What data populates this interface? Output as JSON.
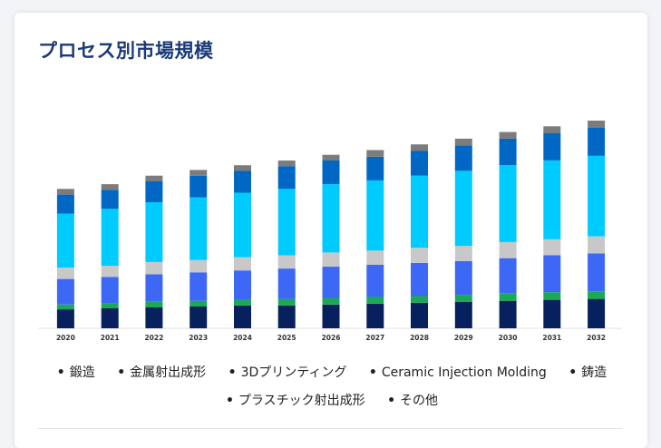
{
  "card": {
    "title": "プロセス別市場規模"
  },
  "chart_data": {
    "type": "bar",
    "stacked": true,
    "categories": [
      "2020",
      "2021",
      "2022",
      "2023",
      "2024",
      "2025",
      "2026",
      "2027",
      "2028",
      "2029",
      "2030",
      "2031",
      "2032"
    ],
    "series": [
      {
        "name": "鍛造",
        "color": "#06215e",
        "values": [
          20,
          21,
          22,
          23,
          24,
          24,
          25,
          26,
          27,
          28,
          29,
          30,
          31
        ]
      },
      {
        "name": "金属射出成形",
        "color": "#1aaa55",
        "values": [
          5,
          5,
          6,
          6,
          6,
          7,
          7,
          7,
          7,
          7,
          8,
          8,
          8
        ]
      },
      {
        "name": "3Dプリンティング",
        "color": "#3d68f5",
        "values": [
          27,
          28,
          29,
          30,
          31,
          32,
          33,
          34,
          35,
          36,
          37,
          39,
          40
        ]
      },
      {
        "name": "Ceramic Injection Molding",
        "color": "#c8c8c8",
        "values": [
          12,
          12,
          13,
          13,
          14,
          14,
          15,
          15,
          16,
          16,
          17,
          17,
          18
        ]
      },
      {
        "name": "鋳造",
        "color": "#00cbff",
        "values": [
          57,
          60,
          63,
          66,
          68,
          70,
          72,
          74,
          76,
          79,
          81,
          83,
          85
        ]
      },
      {
        "name": "プラスチック射出成形",
        "color": "#0068c4",
        "values": [
          20,
          20,
          22,
          23,
          23,
          24,
          25,
          25,
          26,
          27,
          28,
          29,
          30
        ]
      },
      {
        "name": "その他",
        "color": "#7c7c7c",
        "values": [
          6,
          6,
          6,
          6,
          6,
          6,
          6,
          7,
          7,
          7,
          7,
          7,
          7
        ]
      }
    ],
    "ylim": [
      0,
      220
    ],
    "grid": false,
    "legend_position": "bottom"
  },
  "legend": {
    "bullet": "•",
    "items": [
      "鍛造",
      "金属射出成形",
      "3Dプリンティング",
      "Ceramic Injection Molding",
      "鋳造",
      "プラスチック射出成形",
      "その他"
    ]
  }
}
